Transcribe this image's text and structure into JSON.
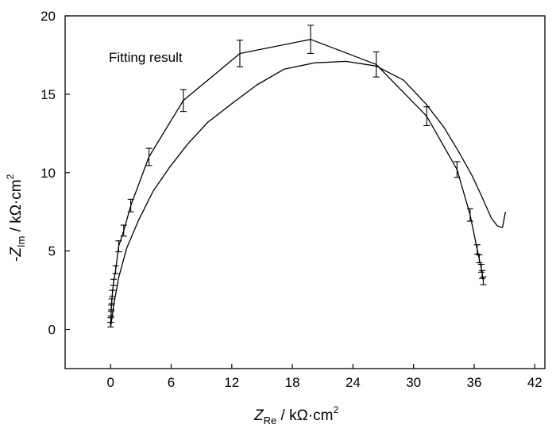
{
  "chart_data": {
    "type": "line",
    "title": "",
    "annotation": "Fitting result",
    "xlabel": {
      "symbol": "Z",
      "subscript": "Re",
      "unit": " / kΩ·cm",
      "superscript": "2"
    },
    "ylabel": {
      "prefix": "-",
      "symbol": "Z",
      "subscript": "Im",
      "unit": " / kΩ·cm",
      "superscript": "2"
    },
    "xlim": [
      -4.5,
      43
    ],
    "ylim": [
      -2.5,
      20
    ],
    "x_ticks": [
      0,
      6,
      12,
      18,
      24,
      30,
      36,
      42
    ],
    "y_ticks": [
      0,
      5,
      10,
      15,
      20
    ],
    "grid": false,
    "series": [
      {
        "style": "line-with-error-bars",
        "x": [
          0.0,
          0.02,
          0.05,
          0.08,
          0.12,
          0.18,
          0.3,
          0.5,
          0.8,
          1.3,
          2.0,
          3.8,
          7.2,
          12.8,
          19.8,
          26.3,
          31.3,
          34.3,
          35.6,
          36.3,
          36.5,
          36.7,
          36.8,
          36.9
        ],
        "y": [
          0.3,
          0.6,
          1.0,
          1.4,
          1.8,
          2.3,
          3.0,
          3.8,
          5.3,
          6.3,
          7.9,
          11.0,
          14.6,
          17.6,
          18.5,
          16.9,
          13.6,
          10.2,
          7.3,
          5.1,
          4.5,
          3.9,
          3.5,
          3.1
        ],
        "error": [
          0.15,
          0.15,
          0.15,
          0.15,
          0.15,
          0.2,
          0.2,
          0.25,
          0.35,
          0.35,
          0.4,
          0.55,
          0.7,
          0.85,
          0.9,
          0.8,
          0.6,
          0.5,
          0.4,
          0.3,
          0.25,
          0.25,
          0.25,
          0.25
        ]
      },
      {
        "style": "line",
        "x": [
          0.02,
          0.3,
          0.8,
          1.6,
          2.8,
          4.2,
          5.8,
          7.6,
          9.6,
          12.0,
          14.5,
          17.2,
          20.2,
          23.3,
          26.3,
          29.0,
          31.2,
          33.0,
          34.5,
          35.8,
          36.8,
          37.7,
          38.3,
          38.8,
          39.1
        ],
        "y": [
          0.2,
          1.5,
          3.3,
          5.2,
          7.0,
          8.8,
          10.3,
          11.8,
          13.2,
          14.4,
          15.6,
          16.6,
          17.0,
          17.1,
          16.8,
          15.9,
          14.4,
          12.9,
          11.3,
          9.8,
          8.4,
          7.1,
          6.6,
          6.5,
          7.5
        ]
      }
    ]
  }
}
